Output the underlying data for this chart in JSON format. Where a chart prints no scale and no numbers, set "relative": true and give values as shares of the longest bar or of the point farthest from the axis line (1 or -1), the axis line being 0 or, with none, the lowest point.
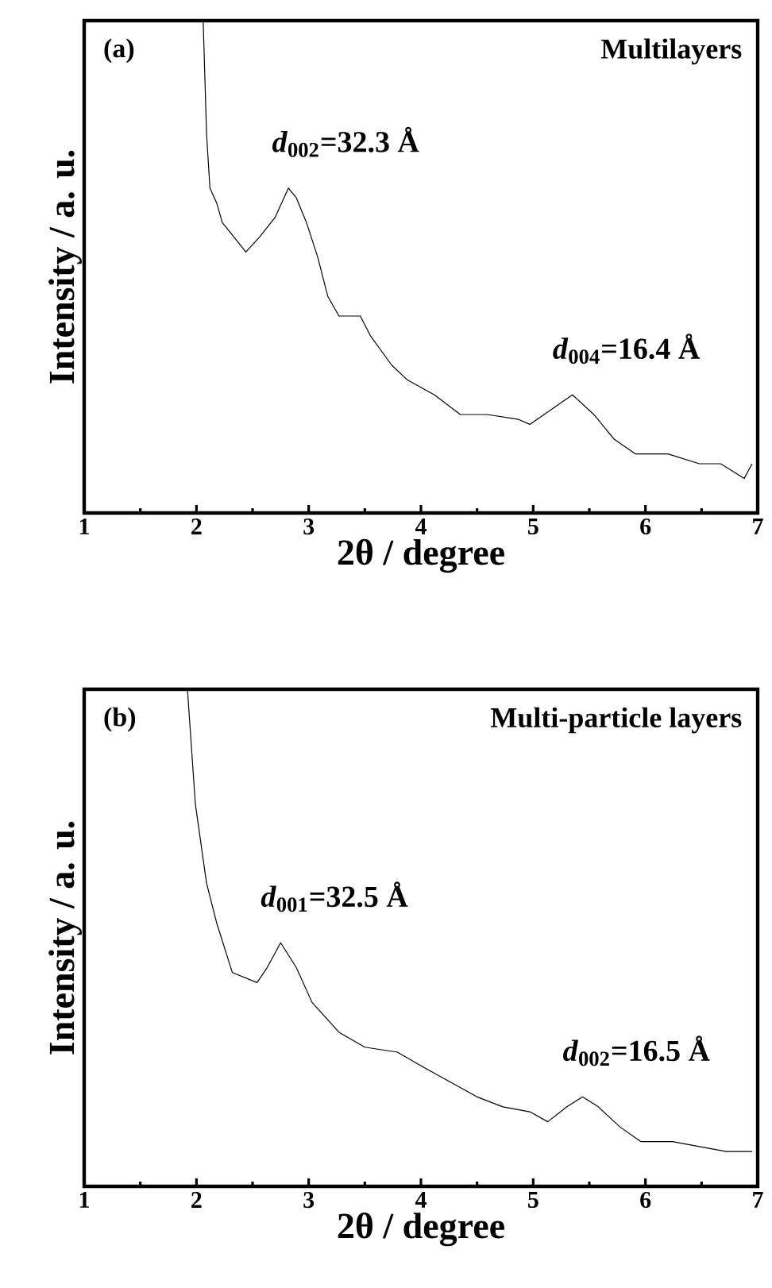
{
  "chart_data": [
    {
      "type": "line",
      "title": "Multilayers",
      "xlabel": "2θ / degree",
      "ylabel": "Intensity / a. u.",
      "relative": true,
      "xlim": [
        1,
        7
      ],
      "xticks": [
        1,
        2,
        3,
        4,
        5,
        6,
        7
      ],
      "annotations": [
        "(a)",
        {
          "text": "*d*$_{002}$=32.3 Å",
          "x": 2.85,
          "y": 0.66
        },
        {
          "text": "*d*$_{004}$=16.4 Å",
          "x": 5.35,
          "y": 0.24
        }
      ],
      "series": [
        {
          "color": "#000000",
          "x": [
            2.06,
            2.09,
            2.12,
            2.18,
            2.23,
            2.37,
            2.44,
            2.56,
            2.7,
            2.82,
            2.89,
            2.98,
            3.08,
            3.17,
            3.27,
            3.46,
            3.55,
            3.74,
            3.88,
            4.12,
            4.35,
            4.59,
            4.87,
            4.97,
            5.16,
            5.35,
            5.54,
            5.72,
            5.91,
            6.2,
            6.48,
            6.67,
            6.88,
            6.95
          ],
          "values": [
            1,
            0.77,
            0.66,
            0.63,
            0.59,
            0.55,
            0.53,
            0.56,
            0.6,
            0.66,
            0.64,
            0.59,
            0.52,
            0.44,
            0.4,
            0.4,
            0.36,
            0.3,
            0.27,
            0.24,
            0.2,
            0.2,
            0.19,
            0.18,
            0.21,
            0.24,
            0.2,
            0.15,
            0.12,
            0.12,
            0.1,
            0.1,
            0.07,
            0.1
          ]
        }
      ]
    },
    {
      "type": "line",
      "title": "Multi-particle layers",
      "xlabel": "2θ / degree",
      "ylabel": "Intensity / a. u.",
      "relative": true,
      "xlim": [
        1,
        7
      ],
      "xticks": [
        1,
        2,
        3,
        4,
        5,
        6,
        7
      ],
      "annotations": [
        "(b)",
        {
          "text": "*d*$_{001}$=32.5 Å",
          "x": 2.75,
          "y": 0.49
        },
        {
          "text": "*d*$_{002}$=16.5 Å",
          "x": 5.44,
          "y": 0.18
        }
      ],
      "series": [
        {
          "color": "#000000",
          "x": [
            1.92,
            1.99,
            2.09,
            2.18,
            2.32,
            2.54,
            2.63,
            2.75,
            2.89,
            3.03,
            3.27,
            3.5,
            3.79,
            4.02,
            4.26,
            4.5,
            4.73,
            4.97,
            5.13,
            5.3,
            5.44,
            5.58,
            5.77,
            5.96,
            6.24,
            6.48,
            6.72,
            6.95
          ],
          "values": [
            1,
            0.77,
            0.61,
            0.53,
            0.43,
            0.41,
            0.44,
            0.49,
            0.44,
            0.37,
            0.31,
            0.28,
            0.27,
            0.24,
            0.21,
            0.18,
            0.16,
            0.15,
            0.13,
            0.16,
            0.18,
            0.16,
            0.12,
            0.09,
            0.09,
            0.08,
            0.07,
            0.07
          ]
        }
      ]
    }
  ]
}
